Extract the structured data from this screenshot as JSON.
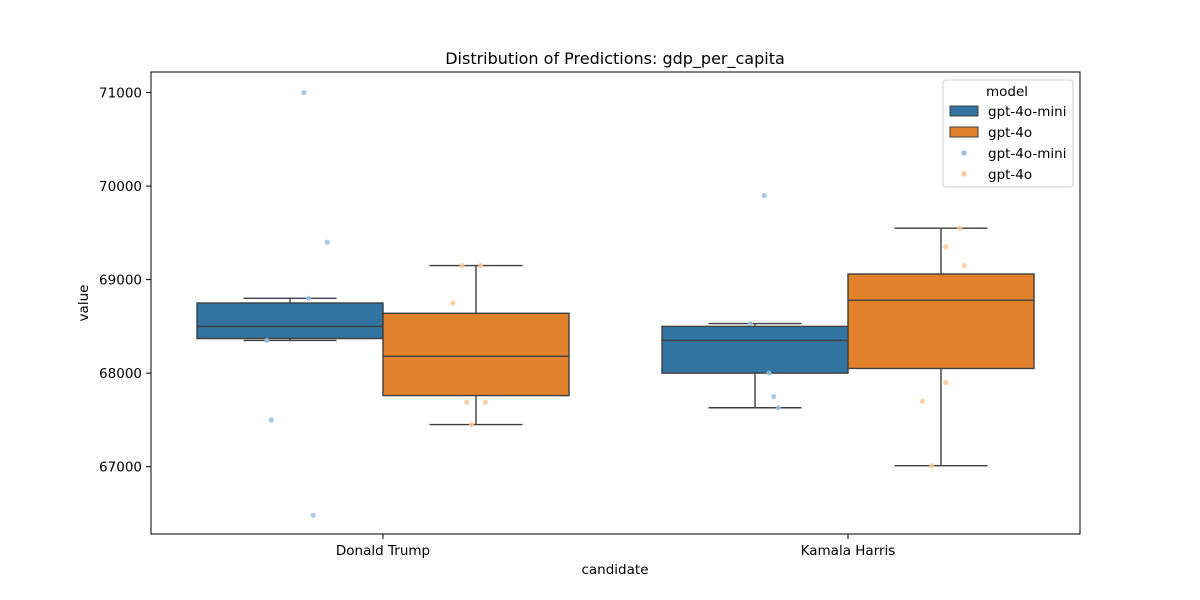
{
  "chart_data": {
    "type": "box",
    "title": "Distribution of Predictions: gdp_per_capita",
    "xlabel": "candidate",
    "ylabel": "value",
    "categories": [
      "Donald Trump",
      "Kamala Harris"
    ],
    "ylim": [
      66280,
      71220
    ],
    "yticks": [
      67000,
      68000,
      69000,
      70000,
      71000
    ],
    "grid": false,
    "legend": {
      "title": "model",
      "placement": "top-right",
      "entries": [
        {
          "label": "gpt-4o-mini",
          "kind": "box"
        },
        {
          "label": "gpt-4o",
          "kind": "box"
        },
        {
          "label": "gpt-4o-mini",
          "kind": "point"
        },
        {
          "label": "gpt-4o",
          "kind": "point"
        }
      ]
    },
    "series": [
      {
        "name": "gpt-4o-mini",
        "color": "#3274a1",
        "point_color": "#9ac0e1",
        "boxes": [
          {
            "category": "Donald Trump",
            "whisker_low": 68350,
            "q1": 68370,
            "median": 68500,
            "q3": 68750,
            "whisker_high": 68800
          },
          {
            "category": "Kamala Harris",
            "whisker_low": 67630,
            "q1": 68000,
            "median": 68350,
            "q3": 68500,
            "whisker_high": 68530
          }
        ],
        "points": [
          {
            "category": "Donald Trump",
            "offset": -0.17,
            "value": 71000
          },
          {
            "category": "Donald Trump",
            "offset": -0.12,
            "value": 69400
          },
          {
            "category": "Donald Trump",
            "offset": -0.16,
            "value": 68800
          },
          {
            "category": "Donald Trump",
            "offset": -0.25,
            "value": 68350
          },
          {
            "category": "Donald Trump",
            "offset": -0.24,
            "value": 67500
          },
          {
            "category": "Donald Trump",
            "offset": -0.15,
            "value": 66480
          },
          {
            "category": "Kamala Harris",
            "offset": -0.18,
            "value": 69900
          },
          {
            "category": "Kamala Harris",
            "offset": -0.21,
            "value": 68530
          },
          {
            "category": "Kamala Harris",
            "offset": -0.17,
            "value": 68000
          },
          {
            "category": "Kamala Harris",
            "offset": -0.16,
            "value": 67750
          },
          {
            "category": "Kamala Harris",
            "offset": -0.15,
            "value": 67630
          }
        ]
      },
      {
        "name": "gpt-4o",
        "color": "#e1812c",
        "point_color": "#ffc797",
        "boxes": [
          {
            "category": "Donald Trump",
            "whisker_low": 67450,
            "q1": 67760,
            "median": 68180,
            "q3": 68640,
            "whisker_high": 69150
          },
          {
            "category": "Kamala Harris",
            "whisker_low": 67010,
            "q1": 68050,
            "median": 68780,
            "q3": 69060,
            "whisker_high": 69550
          }
        ],
        "points": [
          {
            "category": "Donald Trump",
            "offset": 0.17,
            "value": 69150
          },
          {
            "category": "Donald Trump",
            "offset": 0.21,
            "value": 69150
          },
          {
            "category": "Donald Trump",
            "offset": 0.15,
            "value": 68750
          },
          {
            "category": "Donald Trump",
            "offset": 0.18,
            "value": 67690
          },
          {
            "category": "Donald Trump",
            "offset": 0.22,
            "value": 67690
          },
          {
            "category": "Donald Trump",
            "offset": 0.19,
            "value": 67450
          },
          {
            "category": "Kamala Harris",
            "offset": 0.24,
            "value": 69550
          },
          {
            "category": "Kamala Harris",
            "offset": 0.21,
            "value": 69350
          },
          {
            "category": "Kamala Harris",
            "offset": 0.25,
            "value": 69150
          },
          {
            "category": "Kamala Harris",
            "offset": 0.21,
            "value": 67900
          },
          {
            "category": "Kamala Harris",
            "offset": 0.16,
            "value": 67700
          },
          {
            "category": "Kamala Harris",
            "offset": 0.18,
            "value": 67010
          }
        ]
      }
    ]
  }
}
